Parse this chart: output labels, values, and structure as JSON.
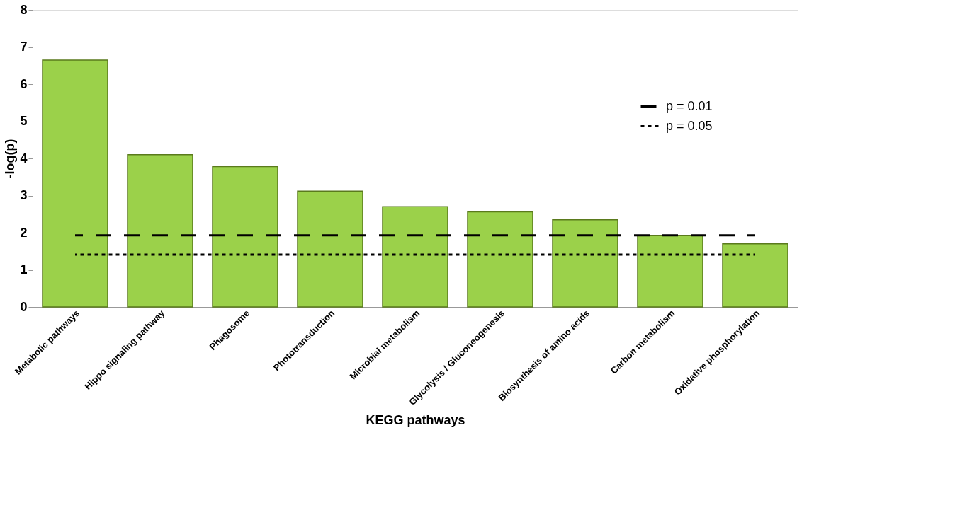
{
  "chart_data": {
    "type": "bar",
    "xlabel": "KEGG pathways",
    "ylabel": "-log(p)",
    "categories": [
      "Metabolic pathways",
      "Hippo signaling pathway",
      "Phagosome",
      "Phototransduction",
      "Microbial metabolism",
      "Glycolysis / Gluconeogenesis",
      "Biosynthesis of amino acids",
      "Carbon metabolism",
      "Oxidative phosphorylation"
    ],
    "series": [
      {
        "color": "#9bd14a",
        "values": [
          6.65,
          4.1,
          3.78,
          3.12,
          2.7,
          2.56,
          2.35,
          1.93,
          1.7
        ]
      },
      {
        "type": "line",
        "name": "p = 0.01",
        "color": "#000000",
        "line_style": "dashed",
        "values": [
          1.93,
          1.93,
          1.93,
          1.93,
          1.93,
          1.93,
          1.93,
          1.93,
          1.93
        ]
      },
      {
        "type": "line",
        "name": "p = 0.05",
        "color": "#000000",
        "line_style": "dotted",
        "values": [
          1.41,
          1.41,
          1.41,
          1.41,
          1.41,
          1.41,
          1.41,
          1.41,
          1.41
        ]
      }
    ],
    "ylim": [
      0,
      8
    ],
    "yticks": [
      0,
      1,
      2,
      3,
      4,
      5,
      6,
      7,
      8
    ],
    "grid": false,
    "legend": "top right",
    "marker": "none"
  }
}
